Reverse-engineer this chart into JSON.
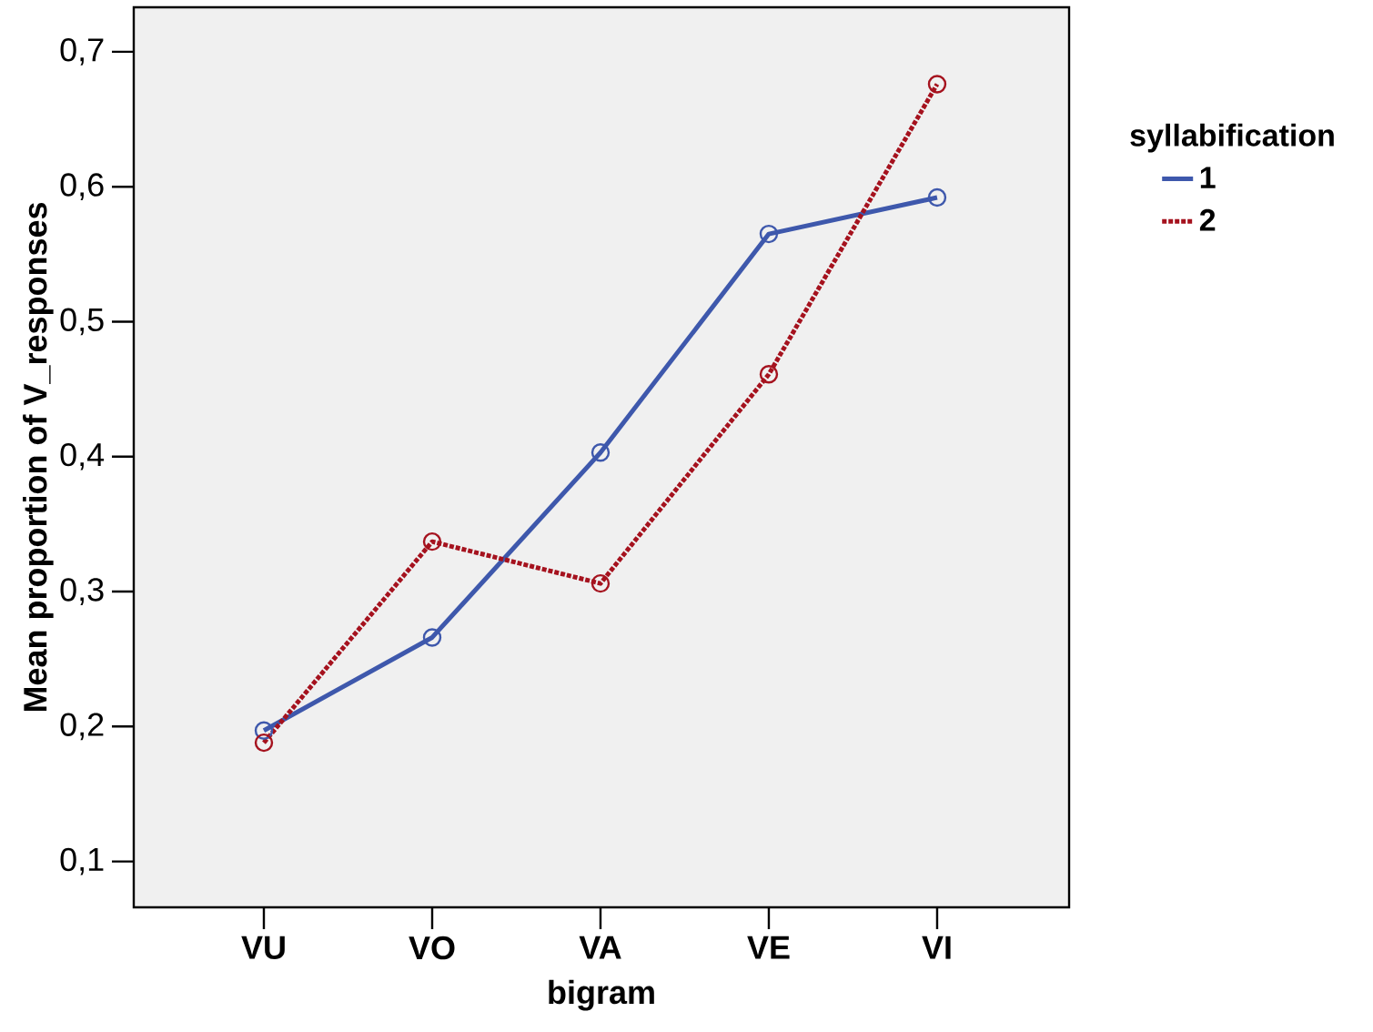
{
  "chart_data": {
    "type": "line",
    "xlabel": "bigram",
    "ylabel": "Mean proportion of V_responses",
    "legend_title": "syllabification",
    "categories": [
      "VU",
      "VO",
      "VA",
      "VE",
      "VI"
    ],
    "series": [
      {
        "name": "1",
        "color": "#3e58ac",
        "line_style": "solid",
        "values": [
          0.197,
          0.266,
          0.403,
          0.565,
          0.592
        ]
      },
      {
        "name": "2",
        "color": "#a5121e",
        "line_style": "dotted",
        "values": [
          0.188,
          0.337,
          0.306,
          0.461,
          0.676
        ]
      }
    ],
    "ylim": [
      0.066,
      0.733
    ],
    "yticks": [
      {
        "value": 0.1,
        "label": "0,1"
      },
      {
        "value": 0.2,
        "label": "0,2"
      },
      {
        "value": 0.3,
        "label": "0,3"
      },
      {
        "value": 0.4,
        "label": "0,4"
      },
      {
        "value": 0.5,
        "label": "0,5"
      },
      {
        "value": 0.6,
        "label": "0,6"
      },
      {
        "value": 0.7,
        "label": "0,7"
      }
    ],
    "marker": "circle",
    "legend": "right"
  }
}
